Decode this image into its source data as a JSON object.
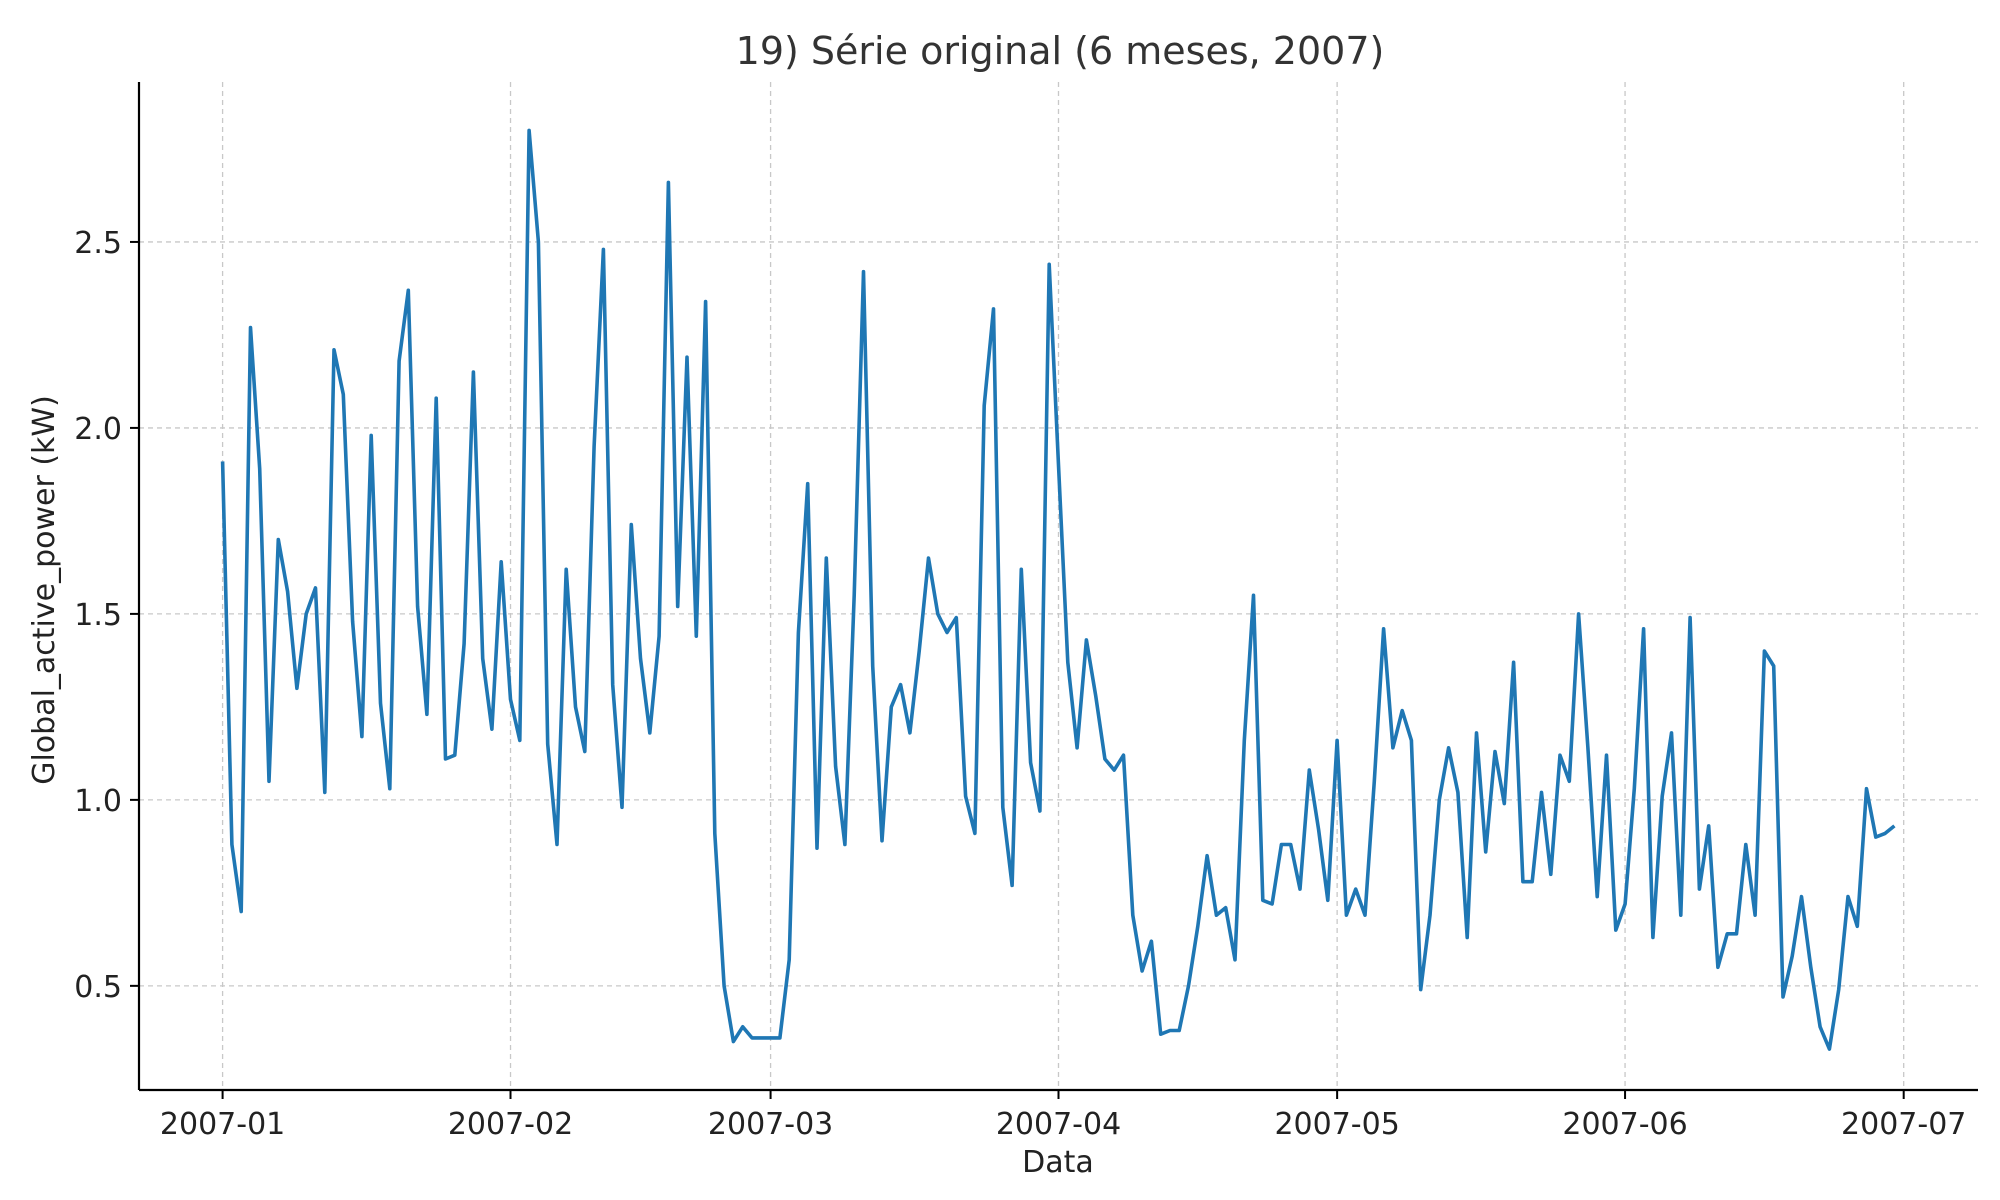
{
  "chart_data": {
    "type": "line",
    "title": "19) Série original (6 meses, 2007)",
    "xlabel": "Data",
    "ylabel": "Global_active_power (kW)",
    "grid": true,
    "x_ticks": [
      "2007-01",
      "2007-02",
      "2007-03",
      "2007-04",
      "2007-05",
      "2007-06",
      "2007-07"
    ],
    "y_ticks": [
      "0.5",
      "1.0",
      "1.5",
      "2.0",
      "2.5"
    ],
    "xlim": [
      "2006-12-23",
      "2007-07-09"
    ],
    "ylim": [
      0.22,
      2.93
    ],
    "series": [
      {
        "color": "#1f77b4",
        "x": [
          "2007-01-01",
          "2007-01-02",
          "2007-01-03",
          "2007-01-04",
          "2007-01-05",
          "2007-01-06",
          "2007-01-07",
          "2007-01-08",
          "2007-01-09",
          "2007-01-10",
          "2007-01-11",
          "2007-01-12",
          "2007-01-13",
          "2007-01-14",
          "2007-01-15",
          "2007-01-16",
          "2007-01-17",
          "2007-01-18",
          "2007-01-19",
          "2007-01-20",
          "2007-01-21",
          "2007-01-22",
          "2007-01-23",
          "2007-01-24",
          "2007-01-25",
          "2007-01-26",
          "2007-01-27",
          "2007-01-28",
          "2007-01-29",
          "2007-01-30",
          "2007-01-31",
          "2007-02-01",
          "2007-02-02",
          "2007-02-03",
          "2007-02-04",
          "2007-02-05",
          "2007-02-06",
          "2007-02-07",
          "2007-02-08",
          "2007-02-09",
          "2007-02-10",
          "2007-02-11",
          "2007-02-12",
          "2007-02-13",
          "2007-02-14",
          "2007-02-15",
          "2007-02-16",
          "2007-02-17",
          "2007-02-18",
          "2007-02-19",
          "2007-02-20",
          "2007-02-21",
          "2007-02-22",
          "2007-02-23",
          "2007-02-24",
          "2007-02-25",
          "2007-02-26",
          "2007-02-27",
          "2007-02-28",
          "2007-03-01",
          "2007-03-02",
          "2007-03-03",
          "2007-03-04",
          "2007-03-05",
          "2007-03-06",
          "2007-03-07",
          "2007-03-08",
          "2007-03-09",
          "2007-03-10",
          "2007-03-11",
          "2007-03-12",
          "2007-03-13",
          "2007-03-14",
          "2007-03-15",
          "2007-03-16",
          "2007-03-17",
          "2007-03-18",
          "2007-03-19",
          "2007-03-20",
          "2007-03-21",
          "2007-03-22",
          "2007-03-23",
          "2007-03-24",
          "2007-03-25",
          "2007-03-26",
          "2007-03-27",
          "2007-03-28",
          "2007-03-29",
          "2007-03-30",
          "2007-03-31",
          "2007-04-01",
          "2007-04-02",
          "2007-04-03",
          "2007-04-04",
          "2007-04-05",
          "2007-04-06",
          "2007-04-07",
          "2007-04-08",
          "2007-04-09",
          "2007-04-10",
          "2007-04-11",
          "2007-04-12",
          "2007-04-13",
          "2007-04-14",
          "2007-04-15",
          "2007-04-16",
          "2007-04-17",
          "2007-04-18",
          "2007-04-19",
          "2007-04-20",
          "2007-04-21",
          "2007-04-22",
          "2007-04-23",
          "2007-04-24",
          "2007-04-25",
          "2007-04-26",
          "2007-04-27",
          "2007-04-28",
          "2007-04-29",
          "2007-04-30",
          "2007-05-01",
          "2007-05-02",
          "2007-05-03",
          "2007-05-04",
          "2007-05-05",
          "2007-05-06",
          "2007-05-07",
          "2007-05-08",
          "2007-05-09",
          "2007-05-10",
          "2007-05-11",
          "2007-05-12",
          "2007-05-13",
          "2007-05-14",
          "2007-05-15",
          "2007-05-16",
          "2007-05-17",
          "2007-05-18",
          "2007-05-19",
          "2007-05-20",
          "2007-05-21",
          "2007-05-22",
          "2007-05-23",
          "2007-05-24",
          "2007-05-25",
          "2007-05-26",
          "2007-05-27",
          "2007-05-28",
          "2007-05-29",
          "2007-05-30",
          "2007-05-31",
          "2007-06-01",
          "2007-06-02",
          "2007-06-03",
          "2007-06-04",
          "2007-06-05",
          "2007-06-06",
          "2007-06-07",
          "2007-06-08",
          "2007-06-09",
          "2007-06-10",
          "2007-06-11",
          "2007-06-12",
          "2007-06-13",
          "2007-06-14",
          "2007-06-15",
          "2007-06-16",
          "2007-06-17",
          "2007-06-18",
          "2007-06-19",
          "2007-06-20",
          "2007-06-21",
          "2007-06-22",
          "2007-06-23",
          "2007-06-24",
          "2007-06-25",
          "2007-06-26",
          "2007-06-27",
          "2007-06-28",
          "2007-06-29",
          "2007-06-30"
        ],
        "y": [
          1.91,
          0.88,
          0.7,
          2.27,
          1.89,
          1.05,
          1.7,
          1.56,
          1.3,
          1.5,
          1.57,
          1.02,
          2.21,
          2.09,
          1.48,
          1.17,
          1.98,
          1.26,
          1.03,
          2.18,
          2.37,
          1.52,
          1.23,
          2.08,
          1.11,
          1.12,
          1.42,
          2.15,
          1.38,
          1.19,
          1.64,
          1.27,
          1.16,
          2.8,
          2.5,
          1.15,
          0.88,
          1.62,
          1.25,
          1.13,
          1.95,
          2.48,
          1.31,
          0.98,
          1.74,
          1.38,
          1.18,
          1.44,
          2.66,
          1.52,
          2.19,
          1.44,
          2.34,
          0.91,
          0.5,
          0.35,
          0.39,
          0.36,
          0.36,
          0.36,
          0.36,
          0.57,
          1.45,
          1.85,
          0.87,
          1.65,
          1.09,
          0.88,
          1.55,
          2.42,
          1.36,
          0.89,
          1.25,
          1.31,
          1.18,
          1.4,
          1.65,
          1.5,
          1.45,
          1.49,
          1.01,
          0.91,
          2.06,
          2.32,
          0.98,
          0.77,
          1.62,
          1.1,
          0.97,
          2.44,
          1.9,
          1.37,
          1.14,
          1.43,
          1.28,
          1.11,
          1.08,
          1.12,
          0.69,
          0.54,
          0.62,
          0.37,
          0.38,
          0.38,
          0.5,
          0.66,
          0.85,
          0.69,
          0.71,
          0.57,
          1.16,
          1.55,
          0.73,
          0.72,
          0.88,
          0.88,
          0.76,
          1.08,
          0.92,
          0.73,
          1.16,
          0.69,
          0.76,
          0.69,
          1.05,
          1.46,
          1.14,
          1.24,
          1.16,
          0.49,
          0.69,
          1.0,
          1.14,
          1.02,
          0.63,
          1.18,
          0.86,
          1.13,
          0.99,
          1.37,
          0.78,
          0.78,
          1.02,
          0.8,
          1.12,
          1.05,
          1.5,
          1.14,
          0.74,
          1.12,
          0.65,
          0.72,
          1.03,
          1.46,
          0.63,
          1.01,
          1.18,
          0.69,
          1.49,
          0.76,
          0.93,
          0.55,
          0.64,
          0.64,
          0.88,
          0.69,
          1.4,
          1.36,
          0.47,
          0.58,
          0.74,
          0.55,
          0.39,
          0.33,
          0.49,
          0.74,
          0.66,
          1.03,
          0.9,
          0.91,
          0.93
        ]
      }
    ]
  }
}
